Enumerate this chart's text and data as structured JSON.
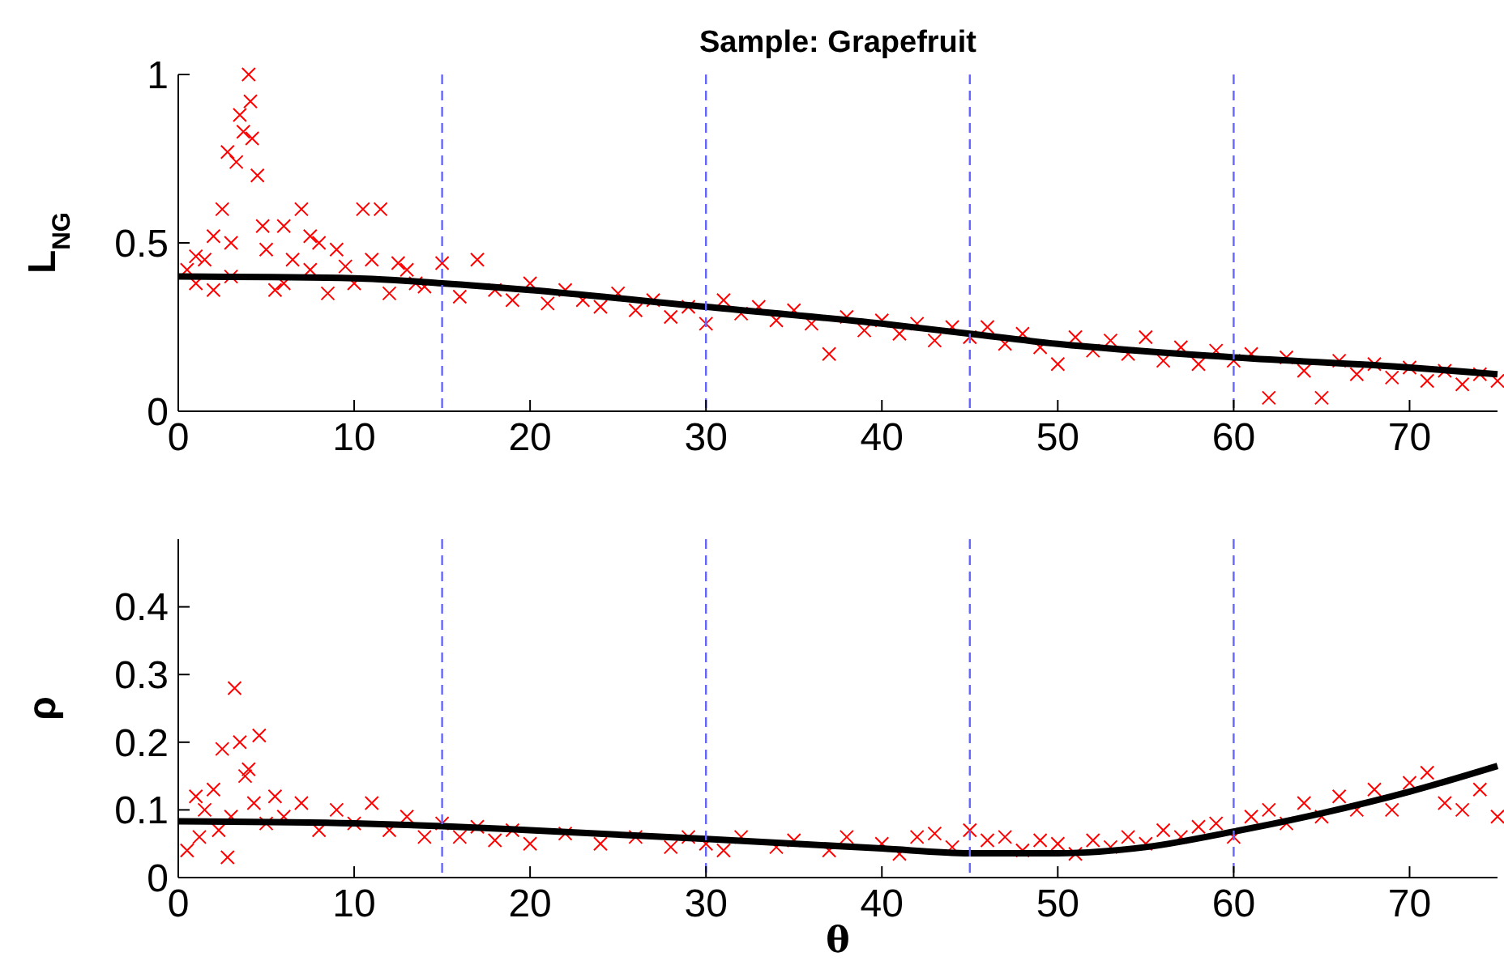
{
  "chart_data": [
    {
      "type": "scatter",
      "title": "Sample: Grapefruit",
      "ylabel": "L$_{NG}$",
      "xlim": [
        0,
        75
      ],
      "xticks": [
        0,
        10,
        20,
        30,
        40,
        50,
        60,
        70
      ],
      "ylim": [
        0,
        1
      ],
      "yticks": [
        0,
        0.5,
        1
      ],
      "grid": false,
      "ref_lines": [
        {
          "axis": "x",
          "value": 15,
          "color": "#6666ff",
          "line_style": "dashed"
        },
        {
          "axis": "x",
          "value": 30,
          "color": "#6666ff",
          "line_style": "dashed"
        },
        {
          "axis": "x",
          "value": 45,
          "color": "#6666ff",
          "line_style": "dashed"
        },
        {
          "axis": "x",
          "value": 60,
          "color": "#6666ff",
          "line_style": "dashed"
        }
      ],
      "series": [
        {
          "color": "#ff0000",
          "marker": "cross",
          "x": [
            0.5,
            1,
            1,
            1.5,
            2,
            2,
            2.5,
            2.8,
            3,
            3,
            3.3,
            3.5,
            3.7,
            4,
            4.1,
            4.2,
            4.5,
            4.8,
            5,
            5.5,
            6,
            6,
            6.5,
            7,
            7.5,
            7.5,
            8,
            8.5,
            9,
            9.5,
            10,
            10.5,
            11,
            11.5,
            12,
            12.5,
            13,
            13.5,
            14,
            15,
            16,
            17,
            18,
            19,
            20,
            21,
            22,
            23,
            24,
            25,
            26,
            27,
            28,
            29,
            30,
            31,
            32,
            33,
            34,
            35,
            36,
            37,
            38,
            39,
            40,
            41,
            42,
            43,
            44,
            45,
            46,
            47,
            48,
            49,
            50,
            51,
            52,
            53,
            54,
            55,
            56,
            57,
            58,
            59,
            60,
            61,
            62,
            63,
            64,
            65,
            66,
            67,
            68,
            69,
            70,
            71,
            72,
            73,
            74,
            75
          ],
          "values": [
            0.42,
            0.38,
            0.46,
            0.45,
            0.52,
            0.36,
            0.6,
            0.77,
            0.4,
            0.5,
            0.74,
            0.88,
            0.83,
            1,
            0.92,
            0.81,
            0.7,
            0.55,
            0.48,
            0.36,
            0.55,
            0.38,
            0.45,
            0.6,
            0.42,
            0.52,
            0.5,
            0.35,
            0.48,
            0.43,
            0.38,
            0.6,
            0.45,
            0.6,
            0.35,
            0.44,
            0.42,
            0.38,
            0.37,
            0.44,
            0.34,
            0.45,
            0.36,
            0.33,
            0.38,
            0.32,
            0.36,
            0.33,
            0.31,
            0.35,
            0.3,
            0.33,
            0.28,
            0.31,
            0.26,
            0.33,
            0.29,
            0.31,
            0.27,
            0.3,
            0.26,
            0.17,
            0.28,
            0.24,
            0.27,
            0.23,
            0.26,
            0.21,
            0.25,
            0.22,
            0.25,
            0.2,
            0.23,
            0.19,
            0.14,
            0.22,
            0.18,
            0.21,
            0.17,
            0.22,
            0.15,
            0.19,
            0.14,
            0.18,
            0.15,
            0.17,
            0.04,
            0.16,
            0.12,
            0.04,
            0.15,
            0.11,
            0.14,
            0.1,
            0.13,
            0.09,
            0.12,
            0.08,
            0.11,
            0.09
          ]
        },
        {
          "type": "line",
          "color": "#000000",
          "marker": "none",
          "line_style": "solid",
          "x": [
            0,
            10,
            15,
            20,
            30,
            40,
            45,
            50,
            60,
            70,
            75
          ],
          "values": [
            0.4,
            0.395,
            0.38,
            0.36,
            0.31,
            0.26,
            0.23,
            0.2,
            0.16,
            0.13,
            0.11
          ]
        }
      ]
    },
    {
      "type": "scatter",
      "xlabel": "θ",
      "ylabel": "ρ",
      "xlim": [
        0,
        75
      ],
      "xticks": [
        0,
        10,
        20,
        30,
        40,
        50,
        60,
        70
      ],
      "ylim": [
        0,
        0.5
      ],
      "yticks": [
        0,
        0.1,
        0.2,
        0.3,
        0.4
      ],
      "grid": false,
      "ref_lines": [
        {
          "axis": "x",
          "value": 15,
          "color": "#6666ff",
          "line_style": "dashed"
        },
        {
          "axis": "x",
          "value": 30,
          "color": "#6666ff",
          "line_style": "dashed"
        },
        {
          "axis": "x",
          "value": 45,
          "color": "#6666ff",
          "line_style": "dashed"
        },
        {
          "axis": "x",
          "value": 60,
          "color": "#6666ff",
          "line_style": "dashed"
        }
      ],
      "series": [
        {
          "color": "#ff0000",
          "marker": "cross",
          "x": [
            0.5,
            1,
            1.2,
            1.5,
            2,
            2.3,
            2.5,
            2.8,
            3,
            3.2,
            3.5,
            3.8,
            4,
            4.3,
            4.6,
            5,
            5.5,
            6,
            7,
            8,
            9,
            10,
            11,
            12,
            13,
            14,
            15,
            16,
            17,
            18,
            19,
            20,
            22,
            24,
            26,
            28,
            29,
            30,
            31,
            32,
            34,
            35,
            37,
            38,
            40,
            41,
            42,
            43,
            44,
            45,
            46,
            47,
            48,
            49,
            50,
            51,
            52,
            53,
            54,
            55,
            56,
            57,
            58,
            59,
            60,
            61,
            62,
            63,
            64,
            65,
            66,
            67,
            68,
            69,
            70,
            71,
            72,
            73,
            74,
            75
          ],
          "values": [
            0.04,
            0.12,
            0.06,
            0.1,
            0.13,
            0.07,
            0.19,
            0.03,
            0.09,
            0.28,
            0.2,
            0.15,
            0.16,
            0.11,
            0.21,
            0.08,
            0.12,
            0.09,
            0.11,
            0.07,
            0.1,
            0.08,
            0.11,
            0.07,
            0.09,
            0.06,
            0.08,
            0.06,
            0.075,
            0.055,
            0.07,
            0.05,
            0.065,
            0.05,
            0.06,
            0.045,
            0.06,
            0.05,
            0.04,
            0.06,
            0.045,
            0.055,
            0.04,
            0.06,
            0.05,
            0.035,
            0.06,
            0.065,
            0.045,
            0.07,
            0.055,
            0.06,
            0.04,
            0.055,
            0.05,
            0.035,
            0.055,
            0.045,
            0.06,
            0.05,
            0.07,
            0.06,
            0.075,
            0.08,
            0.06,
            0.09,
            0.1,
            0.08,
            0.11,
            0.09,
            0.12,
            0.1,
            0.13,
            0.1,
            0.14,
            0.155,
            0.11,
            0.1,
            0.13,
            0.09
          ]
        },
        {
          "type": "line",
          "color": "#000000",
          "marker": "none",
          "line_style": "solid",
          "x": [
            0,
            10,
            15,
            20,
            30,
            40,
            45,
            50,
            55,
            60,
            65,
            70,
            75
          ],
          "values": [
            0.083,
            0.08,
            0.076,
            0.07,
            0.057,
            0.043,
            0.036,
            0.036,
            0.045,
            0.068,
            0.095,
            0.127,
            0.165
          ]
        }
      ]
    }
  ]
}
